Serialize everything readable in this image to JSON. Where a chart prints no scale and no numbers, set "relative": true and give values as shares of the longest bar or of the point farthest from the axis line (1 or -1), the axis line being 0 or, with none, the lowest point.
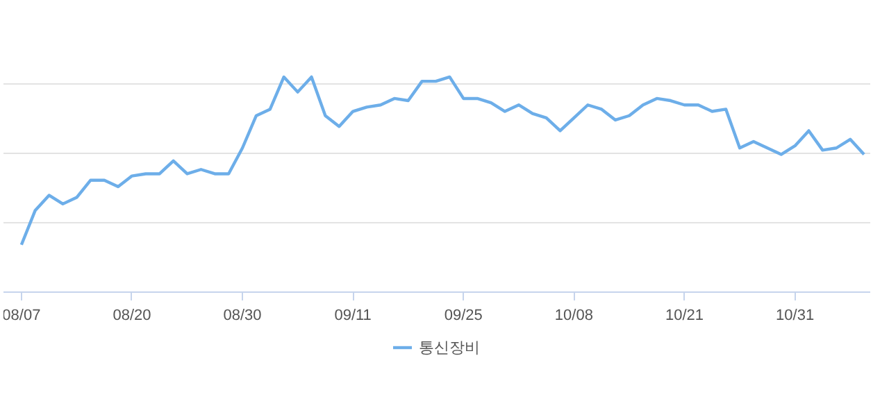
{
  "chart_data": {
    "type": "line",
    "relative": true,
    "grid": "y",
    "legend": "bottom",
    "marker": "none",
    "line_style": "solid",
    "categories": [
      "08/07",
      null,
      null,
      null,
      null,
      null,
      null,
      null,
      "08/20",
      null,
      null,
      null,
      null,
      null,
      null,
      null,
      "08/30",
      null,
      null,
      null,
      null,
      null,
      null,
      null,
      "09/11",
      null,
      null,
      null,
      null,
      null,
      null,
      null,
      "09/25",
      null,
      null,
      null,
      null,
      null,
      null,
      null,
      "10/08",
      null,
      null,
      null,
      null,
      null,
      null,
      null,
      "10/21",
      null,
      null,
      null,
      null,
      null,
      null,
      null,
      "10/31",
      null,
      null,
      null,
      null,
      null
    ],
    "series": [
      {
        "name": "통신장비",
        "color": "#6daee9",
        "values": [
          0.22,
          0.38,
          0.45,
          0.41,
          0.44,
          0.52,
          0.52,
          0.49,
          0.54,
          0.55,
          0.55,
          0.61,
          0.55,
          0.57,
          0.55,
          0.55,
          0.67,
          0.82,
          0.85,
          1.0,
          0.93,
          1.0,
          0.82,
          0.77,
          0.84,
          0.86,
          0.87,
          0.9,
          0.89,
          0.98,
          0.98,
          1.0,
          0.9,
          0.9,
          0.88,
          0.84,
          0.87,
          0.83,
          0.81,
          0.75,
          0.81,
          0.87,
          0.85,
          0.8,
          0.82,
          0.87,
          0.9,
          0.89,
          0.87,
          0.87,
          0.84,
          0.85,
          0.67,
          0.7,
          0.67,
          0.64,
          0.68,
          0.75,
          0.66,
          0.67,
          0.71,
          0.64
        ]
      }
    ]
  }
}
